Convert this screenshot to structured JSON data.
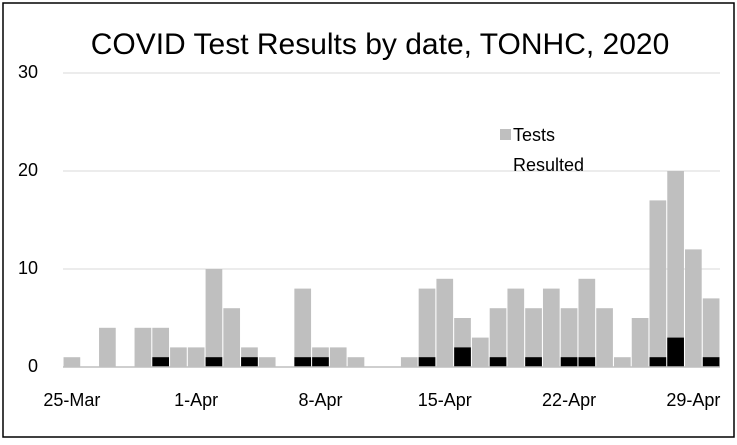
{
  "chart_data": {
    "type": "bar",
    "title": "COVID Test Results by date, TONHC, 2020",
    "categories": [
      "25-Mar",
      null,
      null,
      null,
      null,
      null,
      null,
      "1-Apr",
      null,
      null,
      null,
      null,
      null,
      null,
      "8-Apr",
      null,
      null,
      null,
      null,
      null,
      null,
      "15-Apr",
      null,
      null,
      null,
      null,
      null,
      null,
      "22-Apr",
      null,
      null,
      null,
      null,
      null,
      null,
      "29-Apr",
      null
    ],
    "series": [
      {
        "name": "Tests Resulted",
        "color": "#bfbfbf",
        "values": [
          1,
          0,
          4,
          0,
          4,
          4,
          2,
          2,
          10,
          6,
          2,
          1,
          0,
          8,
          2,
          2,
          1,
          0,
          0,
          1,
          8,
          9,
          5,
          3,
          6,
          8,
          6,
          8,
          6,
          9,
          6,
          1,
          5,
          17,
          20,
          12,
          7
        ]
      },
      {
        "color": "#000000",
        "values": [
          0,
          0,
          0,
          0,
          0,
          1,
          0,
          0,
          1,
          0,
          1,
          0,
          0,
          1,
          1,
          0,
          0,
          0,
          0,
          0,
          1,
          0,
          2,
          0,
          1,
          0,
          1,
          0,
          1,
          1,
          0,
          0,
          0,
          1,
          3,
          0,
          1
        ]
      }
    ],
    "ylim": [
      0,
      30
    ],
    "yticks": [
      0,
      10,
      20,
      30
    ],
    "grid": true
  }
}
